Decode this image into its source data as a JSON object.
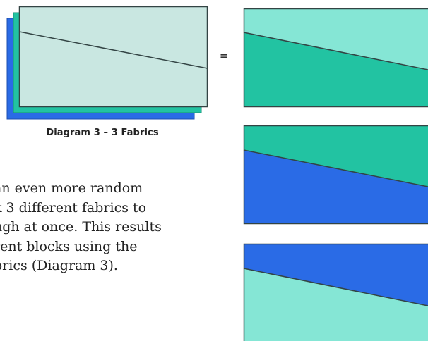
{
  "diagram": {
    "caption": "Diagram 3 – 3 Fabrics",
    "equals_sign": "=",
    "colors": {
      "royal_blue": "#2a6be6",
      "teal": "#22c3a2",
      "aqua": "#85e6d5",
      "pale_aqua": "#c9e7e1",
      "outline": "#334444"
    },
    "paragraph_lines": [
      "an even more random",
      "k 3 different fabrics to",
      "ugh at once. This results",
      "rent blocks using the",
      "brics (Diagram 3)."
    ],
    "results": [
      {
        "upper_fabric": "aqua",
        "lower_fabric": "teal"
      },
      {
        "upper_fabric": "teal",
        "lower_fabric": "royal_blue"
      },
      {
        "upper_fabric": "royal_blue",
        "lower_fabric": "aqua"
      }
    ]
  }
}
